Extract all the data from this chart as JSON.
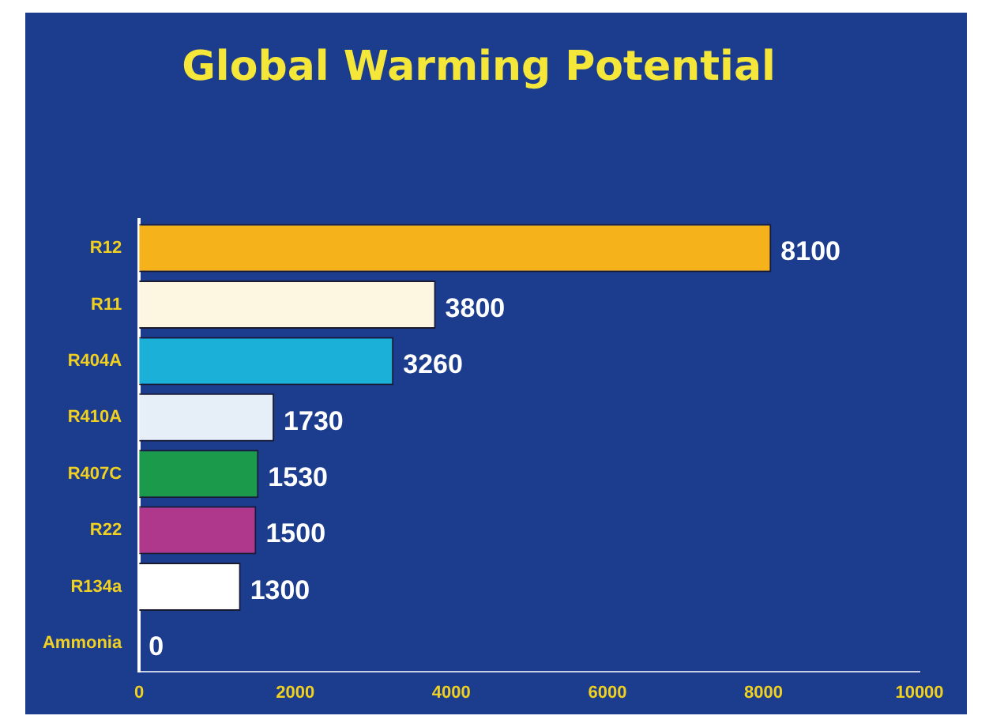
{
  "chart_data": {
    "type": "bar",
    "orientation": "horizontal",
    "title": "Global Warming Potential",
    "categories": [
      "R12",
      "R11",
      "R404A",
      "R410A",
      "R407C",
      "R22",
      "R134a",
      "Ammonia"
    ],
    "values": [
      8100,
      3800,
      3260,
      1730,
      1530,
      1500,
      1300,
      0
    ],
    "colors": [
      "#f5b21a",
      "#fdf6e0",
      "#1ab0d8",
      "#e6eef8",
      "#1a9a4a",
      "#b0388c",
      "#ffffff",
      "#ffffff"
    ],
    "xlim": [
      0,
      10000
    ],
    "xticks": [
      0,
      2000,
      4000,
      6000,
      8000,
      10000
    ],
    "data_labels": true,
    "grid": false,
    "legend": false
  }
}
